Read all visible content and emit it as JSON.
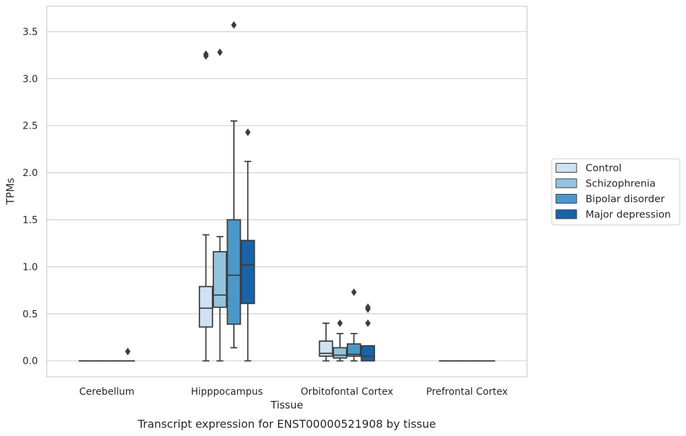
{
  "chart_data": {
    "type": "boxplot",
    "title": "",
    "caption": "Transcript expression for ENST00000521908 by tissue",
    "xlabel": "Tissue",
    "ylabel": "TPMs",
    "ylim": [
      -0.17,
      3.77
    ],
    "yticks": [
      "0.0",
      "0.5",
      "1.0",
      "1.5",
      "2.0",
      "2.5",
      "3.0",
      "3.5"
    ],
    "categories": [
      "Cerebellum",
      "Hipppocampus",
      "Orbitofontal Cortex",
      "Prefrontal Cortex"
    ],
    "grid": "horizontal",
    "legend_position": "right",
    "series": [
      {
        "name": "Control",
        "color": "#cfe1f2",
        "boxes": [
          {
            "q1": 0,
            "median": 0,
            "q3": 0,
            "whisker_low": 0,
            "whisker_high": 0,
            "outliers": []
          },
          {
            "q1": 0.36,
            "median": 0.56,
            "q3": 0.79,
            "whisker_low": 0,
            "whisker_high": 1.34,
            "outliers": [
              3.24,
              3.26
            ]
          },
          {
            "q1": 0.05,
            "median": 0.08,
            "q3": 0.21,
            "whisker_low": 0,
            "whisker_high": 0.4,
            "outliers": []
          },
          {
            "q1": 0,
            "median": 0,
            "q3": 0,
            "whisker_low": 0,
            "whisker_high": 0,
            "outliers": []
          }
        ]
      },
      {
        "name": "Schizophrenia",
        "color": "#93c4de",
        "boxes": [
          {
            "q1": 0,
            "median": 0,
            "q3": 0,
            "whisker_low": 0,
            "whisker_high": 0,
            "outliers": []
          },
          {
            "q1": 0.57,
            "median": 0.7,
            "q3": 1.16,
            "whisker_low": 0,
            "whisker_high": 1.32,
            "outliers": [
              3.28
            ]
          },
          {
            "q1": 0.03,
            "median": 0.06,
            "q3": 0.14,
            "whisker_low": 0,
            "whisker_high": 0.29,
            "outliers": [
              0.4
            ]
          },
          {
            "q1": 0,
            "median": 0,
            "q3": 0,
            "whisker_low": 0,
            "whisker_high": 0,
            "outliers": []
          }
        ]
      },
      {
        "name": "Bipolar disorder",
        "color": "#4a98c9",
        "boxes": [
          {
            "q1": 0,
            "median": 0,
            "q3": 0,
            "whisker_low": 0,
            "whisker_high": 0,
            "outliers": []
          },
          {
            "q1": 0.39,
            "median": 0.91,
            "q3": 1.5,
            "whisker_low": 0.14,
            "whisker_high": 2.55,
            "outliers": [
              3.57
            ]
          },
          {
            "q1": 0.05,
            "median": 0.07,
            "q3": 0.18,
            "whisker_low": 0,
            "whisker_high": 0.29,
            "outliers": [
              0.73
            ]
          },
          {
            "q1": 0,
            "median": 0,
            "q3": 0,
            "whisker_low": 0,
            "whisker_high": 0,
            "outliers": []
          }
        ]
      },
      {
        "name": "Major depression",
        "color": "#1764ab",
        "boxes": [
          {
            "q1": 0,
            "median": 0,
            "q3": 0,
            "whisker_low": 0,
            "whisker_high": 0,
            "outliers": [
              0.1
            ]
          },
          {
            "q1": 0.61,
            "median": 1.02,
            "q3": 1.28,
            "whisker_low": 0,
            "whisker_high": 2.12,
            "outliers": [
              2.43
            ]
          },
          {
            "q1": 0,
            "median": 0.05,
            "q3": 0.16,
            "whisker_low": 0,
            "whisker_high": 0.16,
            "outliers": [
              0.4,
              0.55,
              0.57
            ]
          },
          {
            "q1": 0,
            "median": 0,
            "q3": 0,
            "whisker_low": 0,
            "whisker_high": 0,
            "outliers": []
          }
        ]
      }
    ]
  }
}
